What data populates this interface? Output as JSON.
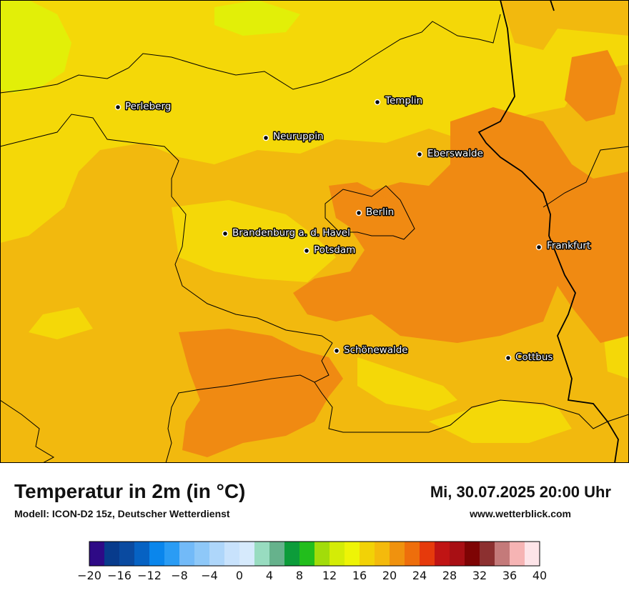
{
  "header": {
    "title": "Temperatur in 2m (in °C)",
    "model": "Modell: ICON-D2 15z, Deutscher Wetterdienst",
    "datetime": "Mi, 30.07.2025 20:00 Uhr",
    "website": "www.wetterblick.com"
  },
  "cities": [
    {
      "name": "Perleberg"
    },
    {
      "name": "Templin"
    },
    {
      "name": "Neuruppin"
    },
    {
      "name": "Eberswalde"
    },
    {
      "name": "Berlin"
    },
    {
      "name": "Brandenburg a. d. Havel"
    },
    {
      "name": "Potsdam"
    },
    {
      "name": "Frankfurt"
    },
    {
      "name": "Schönewalde"
    },
    {
      "name": "Cottbus"
    }
  ],
  "legend": {
    "min": -20,
    "max": 40,
    "step": 2,
    "tick_labels": [
      "−20",
      "−16",
      "−12",
      "−8",
      "−4",
      "0",
      "4",
      "8",
      "12",
      "16",
      "20",
      "24",
      "28",
      "32",
      "36",
      "40"
    ],
    "colors": [
      "#2e0a86",
      "#083b8c",
      "#0a4aa0",
      "#0662c3",
      "#0a86ec",
      "#2a9cf4",
      "#72baf8",
      "#8ec8f8",
      "#aed6fa",
      "#c8e2fc",
      "#d6eafc",
      "#98dcc0",
      "#66b28c",
      "#0c9c3a",
      "#22be1c",
      "#a2dc0a",
      "#d4ec06",
      "#eef406",
      "#f2d206",
      "#f4ba0c",
      "#f0920e",
      "#ee6e0c",
      "#e63a0c",
      "#c01414",
      "#a80f14",
      "#7e0404",
      "#8c3030",
      "#c47a7a",
      "#f6b4b4",
      "#fde4e8"
    ]
  },
  "map_colors": {
    "temp_14_16": "#e2ef08",
    "temp_16_18": "#f4d808",
    "temp_18_20": "#f2b90e",
    "temp_20_22": "#f08a12",
    "border": "#000000"
  }
}
